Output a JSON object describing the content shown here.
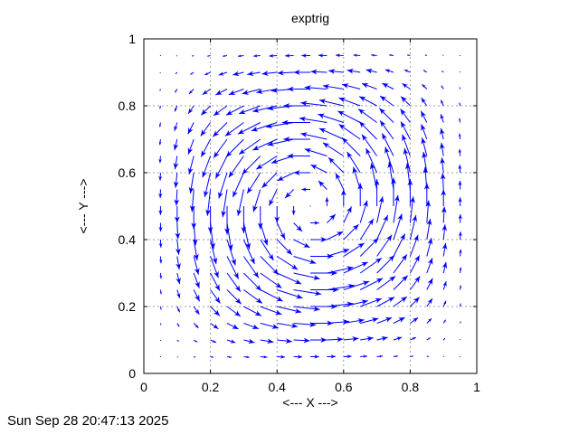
{
  "chart_data": {
    "type": "quiver",
    "title": "exptrig",
    "xlabel": "<--- X --->",
    "ylabel": "<--- Y --->",
    "xlim": [
      0,
      1
    ],
    "ylim": [
      0,
      1
    ],
    "xticks": [
      0,
      0.2,
      0.4,
      0.6,
      0.8,
      1
    ],
    "yticks": [
      0,
      0.2,
      0.4,
      0.6,
      0.8,
      1
    ],
    "xtick_labels": [
      "0",
      "0.2",
      "0.4",
      "0.6",
      "0.8",
      "1"
    ],
    "ytick_labels": [
      "0",
      "0.2",
      "0.4",
      "0.6",
      "0.8",
      "1"
    ],
    "grid": true,
    "grid_style": "dashed",
    "colors": {
      "arrow": "#0000ff",
      "grid": "#9e9e9e",
      "axis": "#000000",
      "text": "#000000",
      "background": "#ffffff"
    },
    "field": {
      "model": "single counterclockwise vortex",
      "u_formula": "sin(pi*x)^2 * sin(2*pi*y)",
      "v_formula": "-sin(pi*y)^2 * sin(2*pi*x)",
      "grid_start": 0.05,
      "grid_step": 0.05,
      "grid_count": 19,
      "arrow_scale": 0.085
    }
  },
  "footer": {
    "timestamp": "Sun Sep 28 20:47:13 2025"
  }
}
